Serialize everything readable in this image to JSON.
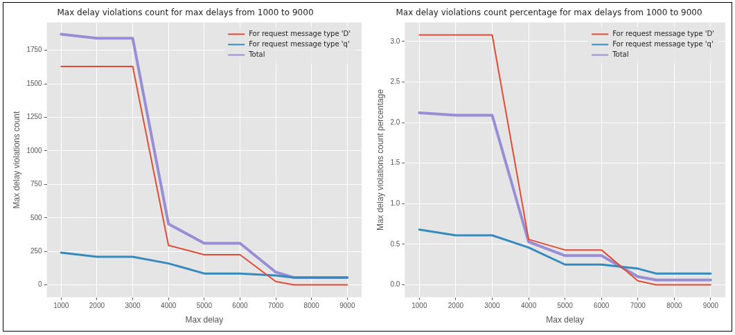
{
  "chart_data": [
    {
      "type": "line",
      "title": "Max delay violations count for max delays from 1000 to 9000",
      "xlabel": "Max delay",
      "ylabel": "Max delay violations count",
      "x": [
        1000,
        2000,
        3000,
        4000,
        5000,
        6000,
        7000,
        7500,
        9000
      ],
      "series": [
        {
          "name": "For request message type 'D'",
          "color": "#e24a33",
          "values": [
            1630,
            1630,
            1630,
            295,
            225,
            225,
            25,
            0,
            0
          ]
        },
        {
          "name": "For request message type 'q'",
          "color": "#348abd",
          "values": [
            240,
            210,
            210,
            160,
            85,
            85,
            70,
            55,
            55
          ]
        },
        {
          "name": "Total",
          "color": "#988ed5",
          "values": [
            1870,
            1840,
            1840,
            455,
            310,
            310,
            95,
            55,
            55
          ]
        }
      ],
      "xlim": [
        600,
        9400
      ],
      "xticks": [
        1000,
        2000,
        3000,
        4000,
        5000,
        6000,
        7000,
        8000,
        9000
      ],
      "ylim": [
        -93,
        1958
      ],
      "yticks": [
        0,
        250,
        500,
        750,
        1000,
        1250,
        1500,
        1750
      ],
      "grid": true,
      "legend": "top right",
      "marker": "none",
      "line_style": "solid"
    },
    {
      "type": "line",
      "title": "Max delay violations count percentage for max delays from 1000 to 9000",
      "xlabel": "Max delay",
      "ylabel": "Max delay violations count percentage",
      "x": [
        1000,
        2000,
        3000,
        4000,
        5000,
        6000,
        7000,
        7500,
        9000
      ],
      "series": [
        {
          "name": "For request message type 'D'",
          "color": "#e24a33",
          "values": [
            3.08,
            3.08,
            3.08,
            0.56,
            0.43,
            0.43,
            0.05,
            0,
            0
          ]
        },
        {
          "name": "For request message type 'q'",
          "color": "#348abd",
          "values": [
            0.68,
            0.61,
            0.61,
            0.46,
            0.25,
            0.25,
            0.2,
            0.14,
            0.14
          ]
        },
        {
          "name": "Total",
          "color": "#988ed5",
          "values": [
            2.12,
            2.09,
            2.09,
            0.53,
            0.36,
            0.36,
            0.1,
            0.06,
            0.06
          ]
        }
      ],
      "xlim": [
        600,
        9400
      ],
      "xticks": [
        1000,
        2000,
        3000,
        4000,
        5000,
        6000,
        7000,
        8000,
        9000
      ],
      "ylim": [
        -0.154,
        3.234
      ],
      "yticks": [
        {
          "value": 0,
          "label": "0.0"
        },
        {
          "value": 0.5,
          "label": "0.5"
        },
        {
          "value": 1,
          "label": "1.0"
        },
        {
          "value": 1.5,
          "label": "1.5"
        },
        {
          "value": 2,
          "label": "2.0"
        },
        {
          "value": 2.5,
          "label": "2.5"
        },
        {
          "value": 3,
          "label": "3.0"
        }
      ],
      "grid": true,
      "legend": "top right",
      "marker": "none",
      "line_style": "solid"
    }
  ]
}
